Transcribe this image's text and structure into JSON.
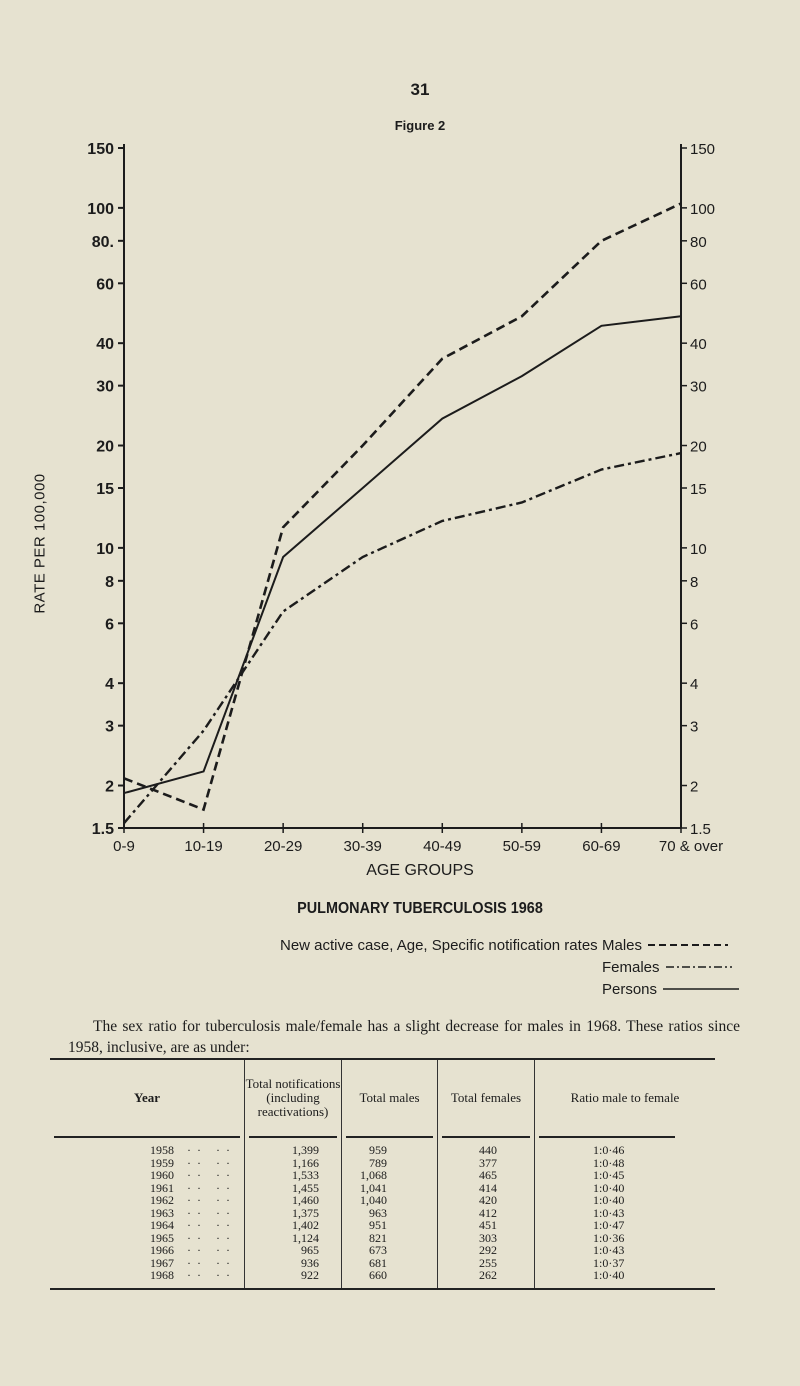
{
  "page": {
    "number": "31",
    "figure_label": "Figure 2"
  },
  "chart_data": {
    "type": "line",
    "title": "PULMONARY TUBERCULOSIS 1968",
    "xlabel": "AGE GROUPS",
    "ylabel": "RATE PER 100,000",
    "y_scale": "log",
    "ylim": [
      1.5,
      150
    ],
    "y_ticks": [
      "150",
      "100",
      "80.",
      "60",
      "40",
      "30",
      "20",
      "15",
      "10",
      "8",
      "6",
      "4",
      "3",
      "2",
      "1.5"
    ],
    "y_tick_values": [
      150,
      100,
      80,
      60,
      40,
      30,
      20,
      15,
      10,
      8,
      6,
      4,
      3,
      2,
      1.5
    ],
    "y_ticks_right": [
      "150",
      "100",
      "80",
      "60",
      "40",
      "30",
      "20",
      "15",
      "10",
      "8",
      "6",
      "4",
      "3",
      "2",
      "1.5"
    ],
    "categories": [
      "0-9",
      "10-19",
      "20-29",
      "30-39",
      "40-49",
      "50-59",
      "60-69",
      "70 & over"
    ],
    "grid": false,
    "legend_placement": "bottom-right",
    "series": [
      {
        "name": "Males",
        "style": "dashed",
        "values": [
          2.1,
          1.7,
          11.5,
          20,
          36,
          48,
          80,
          103
        ]
      },
      {
        "name": "Females",
        "style": "dash-dot",
        "values": [
          1.55,
          2.9,
          6.5,
          9.4,
          12,
          13.6,
          17,
          19
        ]
      },
      {
        "name": "Persons",
        "style": "solid",
        "values": [
          1.9,
          2.2,
          9.4,
          15,
          24,
          32,
          45,
          48
        ]
      }
    ]
  },
  "legend": {
    "description": "New active case, Age, Specific notification rates",
    "males": "Males",
    "females": "Females",
    "persons": "Persons"
  },
  "paragraph": "The sex ratio for tuberculosis male/female has a slight decrease for males in 1968. These ratios since 1958, inclusive, are as under:",
  "table": {
    "headers": [
      "Year",
      "Total notifications (including reactivations)",
      "Total males",
      "Total females",
      "Ratio male to female"
    ],
    "rows": [
      [
        "1958",
        "1,399",
        "959",
        "440",
        "1:0·46"
      ],
      [
        "1959",
        "1,166",
        "789",
        "377",
        "1:0·48"
      ],
      [
        "1960",
        "1,533",
        "1,068",
        "465",
        "1:0·45"
      ],
      [
        "1961",
        "1,455",
        "1,041",
        "414",
        "1:0·40"
      ],
      [
        "1962",
        "1,460",
        "1,040",
        "420",
        "1:0·40"
      ],
      [
        "1963",
        "1,375",
        "963",
        "412",
        "1:0·43"
      ],
      [
        "1964",
        "1,402",
        "951",
        "451",
        "1:0·47"
      ],
      [
        "1965",
        "1,124",
        "821",
        "303",
        "1:0·36"
      ],
      [
        "1966",
        "965",
        "673",
        "292",
        "1:0·43"
      ],
      [
        "1967",
        "936",
        "681",
        "255",
        "1:0·37"
      ],
      [
        "1968",
        "922",
        "660",
        "262",
        "1:0·40"
      ]
    ]
  }
}
